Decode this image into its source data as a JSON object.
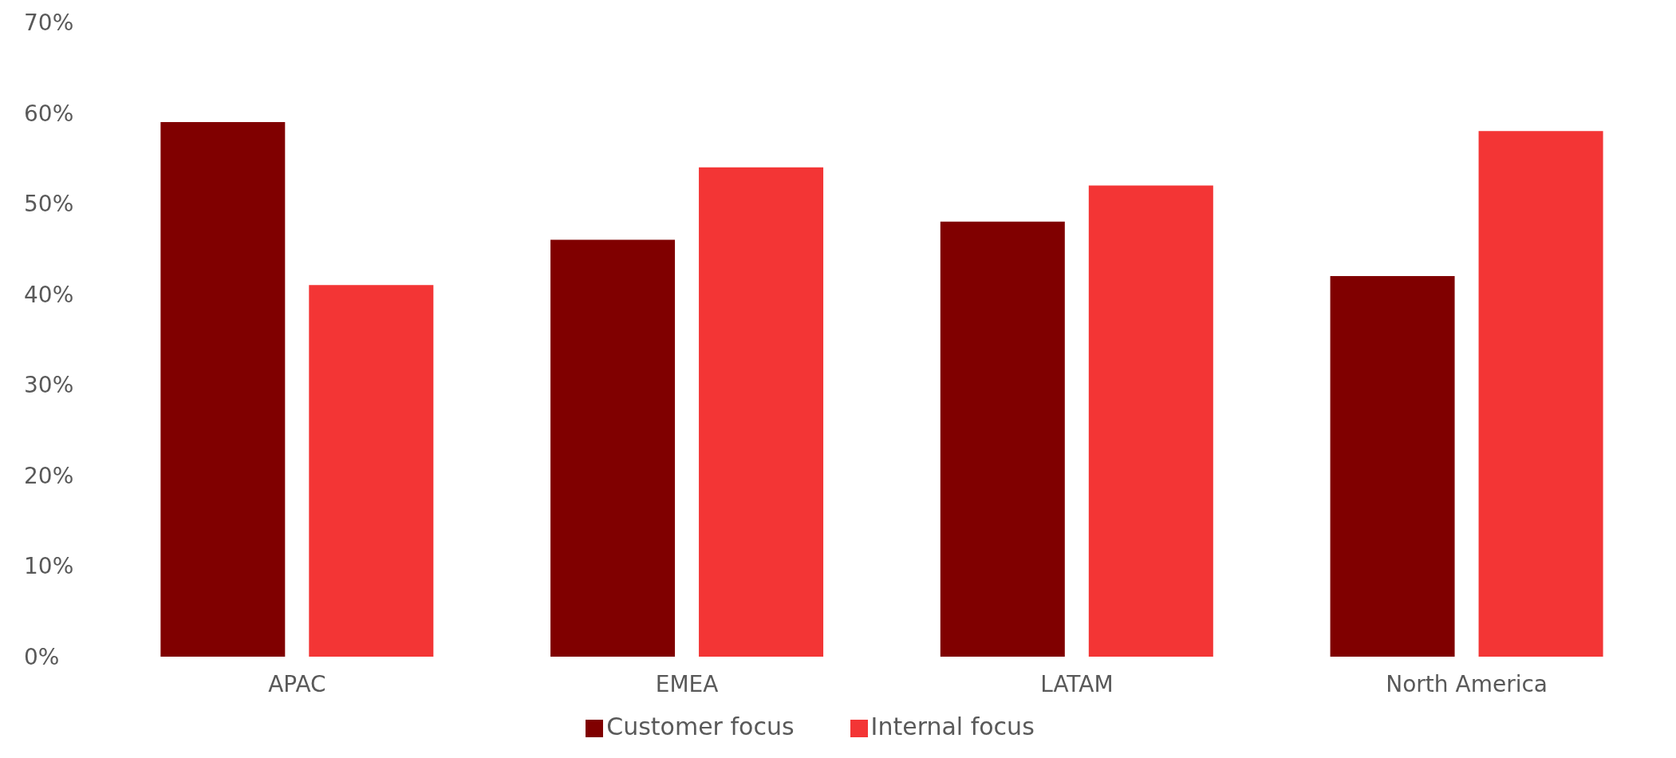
{
  "chart_data": {
    "type": "bar",
    "categories": [
      "APAC",
      "EMEA",
      "LATAM",
      "North America"
    ],
    "series": [
      {
        "name": "Customer focus",
        "color": "#800000",
        "values": [
          59,
          46,
          48,
          42
        ]
      },
      {
        "name": "Internal focus",
        "color": "#f33535",
        "values": [
          41,
          54,
          52,
          58
        ]
      }
    ],
    "ylim": [
      0,
      70
    ],
    "yticks": [
      {
        "value": 0,
        "label": "0%"
      },
      {
        "value": 10,
        "label": "10%"
      },
      {
        "value": 20,
        "label": "20%"
      },
      {
        "value": 30,
        "label": "30%"
      },
      {
        "value": 40,
        "label": "40%"
      },
      {
        "value": 50,
        "label": "50%"
      },
      {
        "value": 60,
        "label": "60%"
      },
      {
        "value": 70,
        "label": "70%"
      }
    ],
    "grid": false,
    "legend": "bottom"
  }
}
